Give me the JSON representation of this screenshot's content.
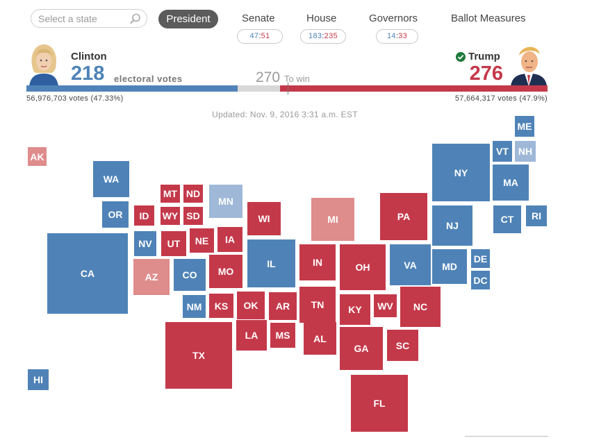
{
  "search": {
    "placeholder": "Select a state",
    "icon": "search-icon"
  },
  "tabs": {
    "president": "President",
    "senate": "Senate",
    "house": "House",
    "governors": "Governors",
    "ballot": "Ballot Measures"
  },
  "pills": {
    "senate": {
      "dem": "47",
      "sep": ":",
      "rep": "51"
    },
    "house": {
      "dem": "183",
      "sep": ":",
      "rep": "235"
    },
    "governors": {
      "dem": "14",
      "sep": ":",
      "rep": "33"
    }
  },
  "clinton": {
    "name": "Clinton",
    "ev": "218",
    "ev_label": "electoral votes",
    "votes": "56,976,703 votes (47.33%)"
  },
  "trump": {
    "name": "Trump",
    "ev": "276",
    "votes": "57,664,317 votes (47.9%)",
    "winner_icon": "check-icon"
  },
  "to_win": {
    "number": "270",
    "label": "To win"
  },
  "electoral_bar": {
    "total": 538,
    "clinton": 218,
    "trump": 276,
    "to_win": 270
  },
  "updated": "Updated: Nov. 9, 2016 3:31 a.m. EST",
  "colors": {
    "dem": "#4f83b7",
    "dem_lean": "#9fb8d8",
    "rep": "#c4394a",
    "rep_lean": "#df8c8c"
  },
  "states": [
    {
      "abbr": "AK",
      "status": "rep_lean"
    },
    {
      "abbr": "ME",
      "status": "dem"
    },
    {
      "abbr": "VT",
      "status": "dem"
    },
    {
      "abbr": "NH",
      "status": "dem_lean"
    },
    {
      "abbr": "WA",
      "status": "dem"
    },
    {
      "abbr": "NY",
      "status": "dem"
    },
    {
      "abbr": "MA",
      "status": "dem"
    },
    {
      "abbr": "MT",
      "status": "rep"
    },
    {
      "abbr": "ND",
      "status": "rep"
    },
    {
      "abbr": "MN",
      "status": "dem_lean"
    },
    {
      "abbr": "OR",
      "status": "dem"
    },
    {
      "abbr": "ID",
      "status": "rep"
    },
    {
      "abbr": "WY",
      "status": "rep"
    },
    {
      "abbr": "SD",
      "status": "rep"
    },
    {
      "abbr": "WI",
      "status": "rep"
    },
    {
      "abbr": "MI",
      "status": "rep_lean"
    },
    {
      "abbr": "PA",
      "status": "rep"
    },
    {
      "abbr": "NJ",
      "status": "dem"
    },
    {
      "abbr": "CT",
      "status": "dem"
    },
    {
      "abbr": "RI",
      "status": "dem"
    },
    {
      "abbr": "NV",
      "status": "dem"
    },
    {
      "abbr": "UT",
      "status": "rep"
    },
    {
      "abbr": "NE",
      "status": "rep"
    },
    {
      "abbr": "IA",
      "status": "rep"
    },
    {
      "abbr": "CA",
      "status": "dem"
    },
    {
      "abbr": "IL",
      "status": "dem"
    },
    {
      "abbr": "IN",
      "status": "rep"
    },
    {
      "abbr": "OH",
      "status": "rep"
    },
    {
      "abbr": "VA",
      "status": "dem"
    },
    {
      "abbr": "MD",
      "status": "dem"
    },
    {
      "abbr": "DE",
      "status": "dem"
    },
    {
      "abbr": "DC",
      "status": "dem"
    },
    {
      "abbr": "AZ",
      "status": "rep_lean"
    },
    {
      "abbr": "CO",
      "status": "dem"
    },
    {
      "abbr": "MO",
      "status": "rep"
    },
    {
      "abbr": "NM",
      "status": "dem"
    },
    {
      "abbr": "KS",
      "status": "rep"
    },
    {
      "abbr": "OK",
      "status": "rep"
    },
    {
      "abbr": "AR",
      "status": "rep"
    },
    {
      "abbr": "TN",
      "status": "rep"
    },
    {
      "abbr": "KY",
      "status": "rep"
    },
    {
      "abbr": "WV",
      "status": "rep"
    },
    {
      "abbr": "NC",
      "status": "rep"
    },
    {
      "abbr": "TX",
      "status": "rep"
    },
    {
      "abbr": "LA",
      "status": "rep"
    },
    {
      "abbr": "MS",
      "status": "rep"
    },
    {
      "abbr": "AL",
      "status": "rep"
    },
    {
      "abbr": "GA",
      "status": "rep"
    },
    {
      "abbr": "SC",
      "status": "rep"
    },
    {
      "abbr": "HI",
      "status": "dem"
    },
    {
      "abbr": "FL",
      "status": "rep"
    }
  ]
}
